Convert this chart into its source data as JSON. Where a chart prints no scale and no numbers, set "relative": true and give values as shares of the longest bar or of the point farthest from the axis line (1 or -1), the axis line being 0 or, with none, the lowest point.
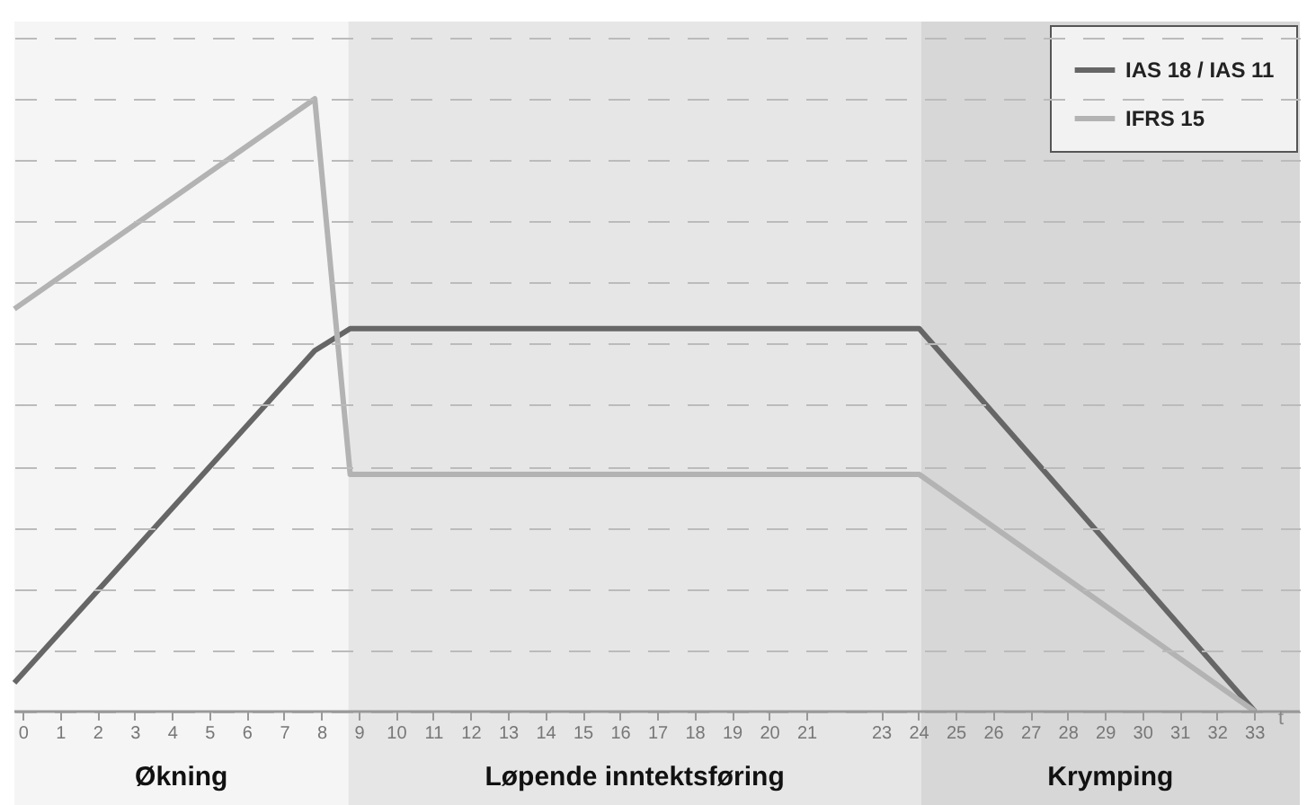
{
  "chart_data": {
    "type": "line",
    "relative": true,
    "xlabel": "t",
    "xlim": [
      -0.25,
      34.2
    ],
    "xticks": [
      0,
      1,
      2,
      3,
      4,
      5,
      6,
      7,
      8,
      9,
      10,
      11,
      12,
      13,
      14,
      15,
      16,
      17,
      18,
      19,
      20,
      21,
      23,
      24,
      25,
      26,
      27,
      28,
      29,
      30,
      31,
      32,
      33
    ],
    "series": [
      {
        "name": "IAS 18 / IAS 11",
        "color": "#666666",
        "x": [
          -0.25,
          7.8,
          8.75,
          24,
          33
        ],
        "values": [
          0.047,
          0.589,
          0.625,
          0.625,
          0
        ]
      },
      {
        "name": "IFRS 15",
        "color": "#b3b3b3",
        "x": [
          -0.25,
          7.8,
          8.75,
          24,
          33
        ],
        "values": [
          0.657,
          1,
          0.387,
          0.387,
          0
        ]
      }
    ],
    "bands": [
      {
        "axis": "x",
        "from": -0.25,
        "to": 8.7,
        "label": "Økning",
        "color": "#f5f5f5"
      },
      {
        "axis": "x",
        "from": 8.7,
        "to": 24.05,
        "label": "Løpende inntektsføring",
        "color": "#e6e6e6"
      },
      {
        "axis": "x",
        "from": 24.05,
        "to": 34.2,
        "label": "Krymping",
        "color": "#d7d7d7"
      }
    ],
    "grid": "y",
    "legend": "top right",
    "line_style": "solid",
    "marker": "none"
  }
}
